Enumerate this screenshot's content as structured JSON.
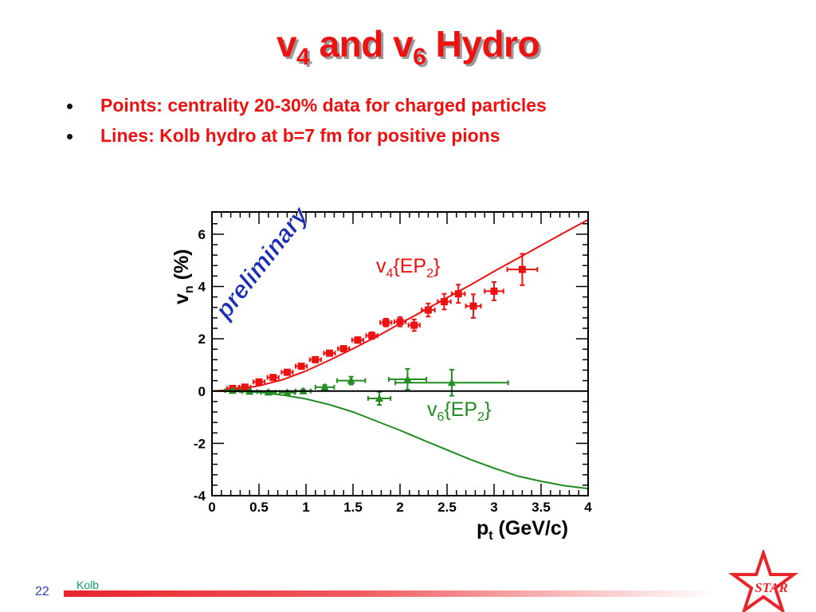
{
  "slide": {
    "title": {
      "v": "v",
      "sub1": "4",
      "and": " and v",
      "sub2": "6",
      "rest": " Hydro"
    },
    "bullets": [
      "Points: centrality 20-30% data for charged particles",
      "Lines: Kolb hydro at b=7 fm for positive pions"
    ],
    "footer_name": "Kolb",
    "page_number": "22",
    "logo_text": "STAR"
  },
  "colors": {
    "title": "#ee1111",
    "v4": "#ee1111",
    "v6": "#228b22",
    "preliminary": "#1a2fb5",
    "star": "#e8242c"
  },
  "chart_data": {
    "type": "scatter",
    "xlabel": {
      "main": "p",
      "sub": "t",
      "rest": " (GeV/c)"
    },
    "ylabel": {
      "main": "v",
      "sub": "n",
      "rest": " (%)"
    },
    "xlim": [
      0,
      4
    ],
    "ylim": [
      -4,
      6.85
    ],
    "x_ticks": [
      "0",
      "0.5",
      "1",
      "1.5",
      "2",
      "2.5",
      "3",
      "3.5",
      "4"
    ],
    "y_ticks": [
      "-4",
      "-2",
      "0",
      "2",
      "4",
      "6"
    ],
    "x_tick_values": [
      0,
      0.5,
      1,
      1.5,
      2,
      2.5,
      3,
      3.5,
      4
    ],
    "y_tick_values": [
      -4,
      -2,
      0,
      2,
      4,
      6
    ],
    "annotation": "preliminary",
    "series": [
      {
        "name": "v4{EP2}",
        "label": {
          "main": "v",
          "sub": "4",
          "mid": "{EP",
          "sub2": "2",
          "end": "}"
        },
        "marker": "square",
        "points": [
          {
            "x": 0.22,
            "y": 0.1,
            "xerr": 0.06,
            "yerr": 0.04
          },
          {
            "x": 0.35,
            "y": 0.15,
            "xerr": 0.06,
            "yerr": 0.04
          },
          {
            "x": 0.5,
            "y": 0.35,
            "xerr": 0.06,
            "yerr": 0.05
          },
          {
            "x": 0.65,
            "y": 0.52,
            "xerr": 0.06,
            "yerr": 0.05
          },
          {
            "x": 0.8,
            "y": 0.72,
            "xerr": 0.06,
            "yerr": 0.06
          },
          {
            "x": 0.95,
            "y": 0.95,
            "xerr": 0.06,
            "yerr": 0.07
          },
          {
            "x": 1.1,
            "y": 1.2,
            "xerr": 0.06,
            "yerr": 0.08
          },
          {
            "x": 1.25,
            "y": 1.45,
            "xerr": 0.06,
            "yerr": 0.09
          },
          {
            "x": 1.4,
            "y": 1.62,
            "xerr": 0.06,
            "yerr": 0.1
          },
          {
            "x": 1.55,
            "y": 1.95,
            "xerr": 0.06,
            "yerr": 0.11
          },
          {
            "x": 1.7,
            "y": 2.12,
            "xerr": 0.06,
            "yerr": 0.13
          },
          {
            "x": 1.85,
            "y": 2.62,
            "xerr": 0.06,
            "yerr": 0.15
          },
          {
            "x": 2.0,
            "y": 2.65,
            "xerr": 0.06,
            "yerr": 0.18
          },
          {
            "x": 2.15,
            "y": 2.52,
            "xerr": 0.06,
            "yerr": 0.22
          },
          {
            "x": 2.3,
            "y": 3.1,
            "xerr": 0.07,
            "yerr": 0.25
          },
          {
            "x": 2.47,
            "y": 3.42,
            "xerr": 0.07,
            "yerr": 0.3
          },
          {
            "x": 2.62,
            "y": 3.72,
            "xerr": 0.07,
            "yerr": 0.35
          },
          {
            "x": 2.78,
            "y": 3.25,
            "xerr": 0.08,
            "yerr": 0.45
          },
          {
            "x": 3.0,
            "y": 3.82,
            "xerr": 0.1,
            "yerr": 0.35
          },
          {
            "x": 3.3,
            "y": 4.65,
            "xerr": 0.16,
            "yerr": 0.6
          }
        ]
      },
      {
        "name": "v6{EP2}",
        "label": {
          "main": "v",
          "sub": "6",
          "mid": "{EP",
          "sub2": "2",
          "end": "}"
        },
        "marker": "triangle",
        "points": [
          {
            "x": 0.22,
            "y": 0.02,
            "xerr": 0.08,
            "yerr": 0.05
          },
          {
            "x": 0.4,
            "y": -0.02,
            "xerr": 0.08,
            "yerr": 0.05
          },
          {
            "x": 0.6,
            "y": -0.05,
            "xerr": 0.08,
            "yerr": 0.06
          },
          {
            "x": 0.8,
            "y": -0.06,
            "xerr": 0.08,
            "yerr": 0.06
          },
          {
            "x": 0.97,
            "y": 0.0,
            "xerr": 0.08,
            "yerr": 0.07
          },
          {
            "x": 1.2,
            "y": 0.15,
            "xerr": 0.1,
            "yerr": 0.08
          },
          {
            "x": 1.48,
            "y": 0.4,
            "xerr": 0.15,
            "yerr": 0.15
          },
          {
            "x": 1.78,
            "y": -0.28,
            "xerr": 0.12,
            "yerr": 0.25
          },
          {
            "x": 2.08,
            "y": 0.45,
            "xerr": 0.2,
            "yerr": 0.4
          },
          {
            "x": 2.55,
            "y": 0.32,
            "xerr": 0.6,
            "yerr": 0.5
          }
        ]
      }
    ],
    "curves": [
      {
        "name": "Kolb hydro v4",
        "points": [
          [
            0,
            0
          ],
          [
            0.25,
            0.05
          ],
          [
            0.5,
            0.2
          ],
          [
            0.75,
            0.43
          ],
          [
            1.0,
            0.77
          ],
          [
            1.25,
            1.18
          ],
          [
            1.5,
            1.62
          ],
          [
            1.75,
            2.08
          ],
          [
            2.0,
            2.58
          ],
          [
            2.25,
            3.07
          ],
          [
            2.5,
            3.57
          ],
          [
            2.75,
            4.06
          ],
          [
            3.0,
            4.58
          ],
          [
            3.25,
            5.07
          ],
          [
            3.5,
            5.57
          ],
          [
            3.75,
            6.07
          ],
          [
            4.0,
            6.55
          ]
        ]
      },
      {
        "name": "Kolb hydro v6",
        "points": [
          [
            0,
            0
          ],
          [
            0.25,
            -0.01
          ],
          [
            0.5,
            -0.04
          ],
          [
            0.75,
            -0.15
          ],
          [
            1.0,
            -0.3
          ],
          [
            1.25,
            -0.52
          ],
          [
            1.5,
            -0.8
          ],
          [
            1.75,
            -1.15
          ],
          [
            2.0,
            -1.5
          ],
          [
            2.25,
            -1.88
          ],
          [
            2.5,
            -2.25
          ],
          [
            2.75,
            -2.62
          ],
          [
            3.0,
            -2.95
          ],
          [
            3.25,
            -3.25
          ],
          [
            3.5,
            -3.45
          ],
          [
            3.75,
            -3.62
          ],
          [
            4.0,
            -3.73
          ]
        ]
      }
    ]
  }
}
